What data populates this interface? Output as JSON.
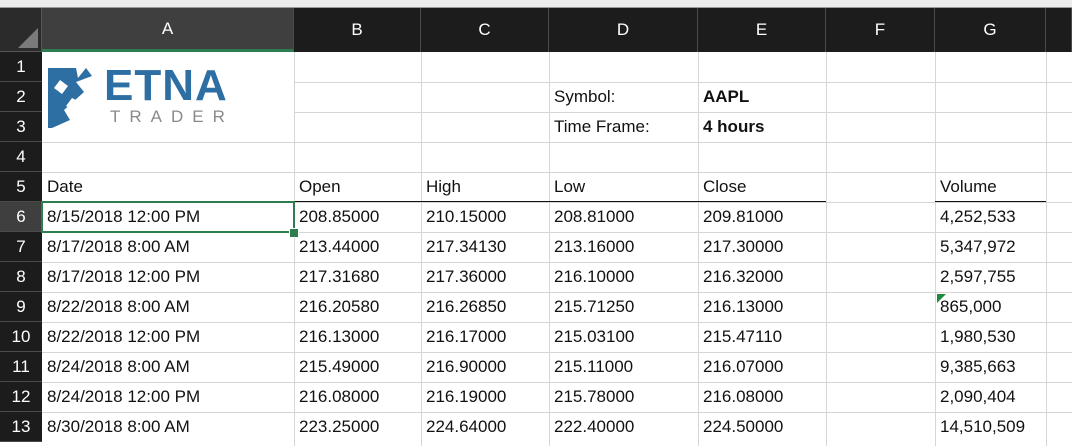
{
  "columns": [
    "A",
    "B",
    "C",
    "D",
    "E",
    "F",
    "G"
  ],
  "rows": [
    "1",
    "2",
    "3",
    "4",
    "5",
    "6",
    "7",
    "8",
    "9",
    "10",
    "11",
    "12",
    "13"
  ],
  "logo": {
    "main": "ETNA",
    "sub": "TRADER",
    "brand_color": "#2d6ea3"
  },
  "info": {
    "symbol_label": "Symbol:",
    "symbol_value": "AAPL",
    "timeframe_label": "Time Frame:",
    "timeframe_value": "4 hours"
  },
  "headers": [
    "Date",
    "Open",
    "High",
    "Low",
    "Close",
    "Volume"
  ],
  "data_rows": [
    {
      "date": "8/15/2018 12:00 PM",
      "open": "208.85000",
      "high": "210.15000",
      "low": "208.81000",
      "close": "209.81000",
      "volume": "4,252,533"
    },
    {
      "date": "8/17/2018 8:00 AM",
      "open": "213.44000",
      "high": "217.34130",
      "low": "213.16000",
      "close": "217.30000",
      "volume": "5,347,972"
    },
    {
      "date": "8/17/2018 12:00 PM",
      "open": "217.31680",
      "high": "217.36000",
      "low": "216.10000",
      "close": "216.32000",
      "volume": "2,597,755"
    },
    {
      "date": "8/22/2018 8:00 AM",
      "open": "216.20580",
      "high": "216.26850",
      "low": "215.71250",
      "close": "216.13000",
      "volume": "865,000"
    },
    {
      "date": "8/22/2018 12:00 PM",
      "open": "216.13000",
      "high": "216.17000",
      "low": "215.03100",
      "close": "215.47110",
      "volume": "1,980,530"
    },
    {
      "date": "8/24/2018 8:00 AM",
      "open": "215.49000",
      "high": "216.90000",
      "low": "215.11000",
      "close": "216.07000",
      "volume": "9,385,663"
    },
    {
      "date": "8/24/2018 12:00 PM",
      "open": "216.08000",
      "high": "216.19000",
      "low": "215.78000",
      "close": "216.08000",
      "volume": "2,090,404"
    },
    {
      "date": "8/30/2018 8:00 AM",
      "open": "223.25000",
      "high": "224.64000",
      "low": "222.40000",
      "close": "224.50000",
      "volume": "14,510,509"
    }
  ],
  "selection": {
    "active_cell": "A6",
    "selected_column": "A",
    "selected_row": "6",
    "accent_color": "#2e7d4f"
  },
  "error_indicator_cell": "G9"
}
